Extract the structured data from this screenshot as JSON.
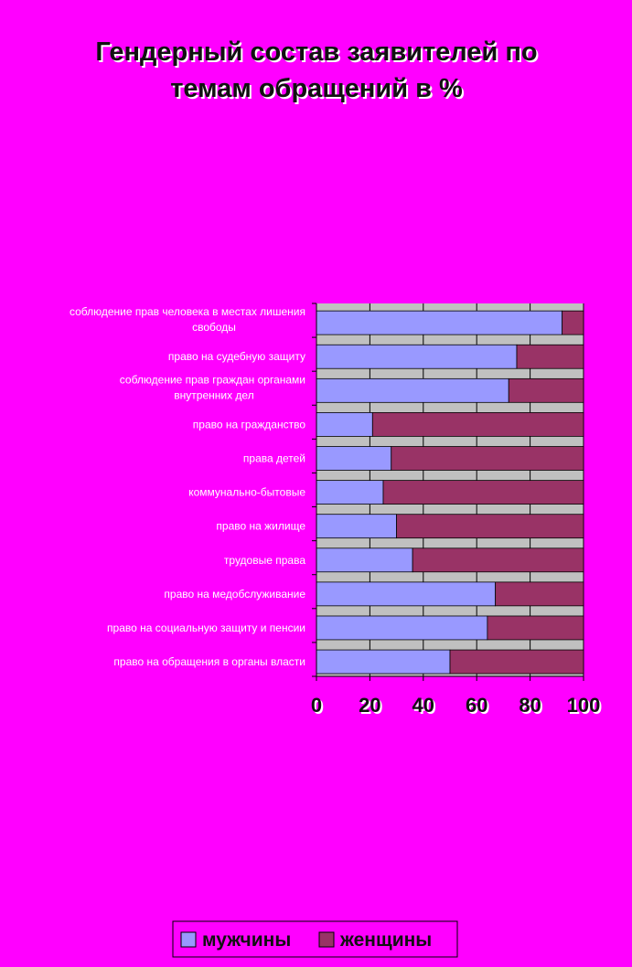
{
  "chart_data": {
    "type": "bar",
    "orientation": "horizontal",
    "stacked": "percent",
    "title": [
      "Гендерный состав заявителей по",
      "темам обращений в %"
    ],
    "categories": [
      [
        "соблюдение прав человека в местах лишения",
        "свободы"
      ],
      [
        "право на судебную защиту"
      ],
      [
        "соблюдение прав граждан органами",
        "внутренних дел"
      ],
      [
        "право на гражданство"
      ],
      [
        "права детей"
      ],
      [
        "коммунально-бытовые"
      ],
      [
        "право на жилище"
      ],
      [
        "трудовые права"
      ],
      [
        "право на медобслуживание"
      ],
      [
        "право на социальную защиту и пенсии"
      ],
      [
        "право на обращения в органы власти"
      ]
    ],
    "series": [
      {
        "name": "мужчины",
        "color": "#9999ff",
        "values": [
          92,
          75,
          72,
          21,
          28,
          25,
          30,
          36,
          67,
          64,
          50
        ]
      },
      {
        "name": "женщины",
        "color": "#993366",
        "values": [
          8,
          25,
          28,
          79,
          72,
          75,
          70,
          64,
          33,
          36,
          50
        ]
      }
    ],
    "xlim": [
      0,
      100
    ],
    "xticks": [
      0,
      20,
      40,
      60,
      80,
      100
    ],
    "grid": true,
    "legend_position": "bottom"
  }
}
